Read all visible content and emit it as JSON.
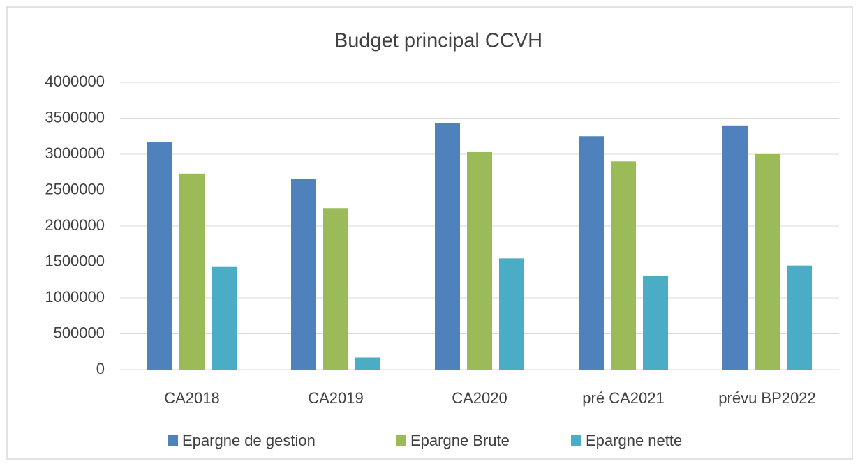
{
  "chart_data": {
    "type": "bar",
    "title": "Budget principal CCVH",
    "categories": [
      "CA2018",
      "CA2019",
      "CA2020",
      "pré CA2021",
      "prévu BP2022"
    ],
    "series": [
      {
        "name": "Epargne de gestion",
        "color": "#4f81bd",
        "values": [
          3170000,
          2660000,
          3430000,
          3250000,
          3400000
        ]
      },
      {
        "name": "Epargne Brute",
        "color": "#9bbb59",
        "values": [
          2730000,
          2250000,
          3030000,
          2900000,
          3000000
        ]
      },
      {
        "name": "Epargne nette",
        "color": "#4bacc6",
        "values": [
          1430000,
          170000,
          1550000,
          1310000,
          1450000
        ]
      }
    ],
    "ylim": [
      0,
      4000000
    ],
    "yticks": [
      0,
      500000,
      1000000,
      1500000,
      2000000,
      2500000,
      3000000,
      3500000,
      4000000
    ],
    "grid": true,
    "legend": "bottom"
  }
}
